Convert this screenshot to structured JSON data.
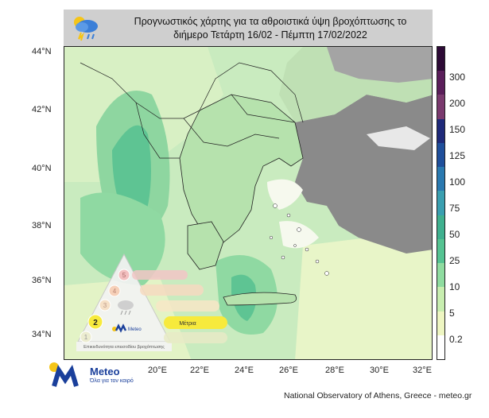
{
  "title": {
    "line1": "Προγνωστικός χάρτης για τα αθροιστικά ύψη βροχόπτωσης το",
    "line2": "διήμερο Τετάρτη 16/02 - Πέμπτη 17/02/2022"
  },
  "axes": {
    "lat_labels": [
      "44°N",
      "42°N",
      "40°N",
      "38°N",
      "36°N",
      "34°N"
    ],
    "lon_labels": [
      "20°E",
      "22°E",
      "24°E",
      "26°E",
      "28°E",
      "30°E",
      "32°E"
    ]
  },
  "colorbar": {
    "labels": [
      "300",
      "200",
      "150",
      "125",
      "100",
      "75",
      "50",
      "25",
      "10",
      "5",
      "0.2"
    ],
    "colors": [
      "#2d0a36",
      "#5a1e5a",
      "#7a3a6e",
      "#1f2a7a",
      "#1f4f9b",
      "#2a79b0",
      "#3a9fb0",
      "#3fb08f",
      "#55c392",
      "#8fdca0",
      "#c8eeb0",
      "#eef6c2",
      "#ffffff"
    ]
  },
  "inset": {
    "category_selected": "Μέτρια",
    "category_selected_level": "2",
    "levels": [
      "1",
      "2",
      "3",
      "4",
      "5"
    ],
    "footer": "Επικινδυνότητα επεισοδίου βροχόπτωσης",
    "logo_name": "Meteo"
  },
  "brand": {
    "name": "Meteo",
    "slogan": "Όλα για τον καιρό"
  },
  "credit": "National Observatory of Athens, Greece - meteo.gr",
  "icons": [
    "rain-cloud-icon",
    "meteo-logo-icon",
    "sun-icon"
  ]
}
